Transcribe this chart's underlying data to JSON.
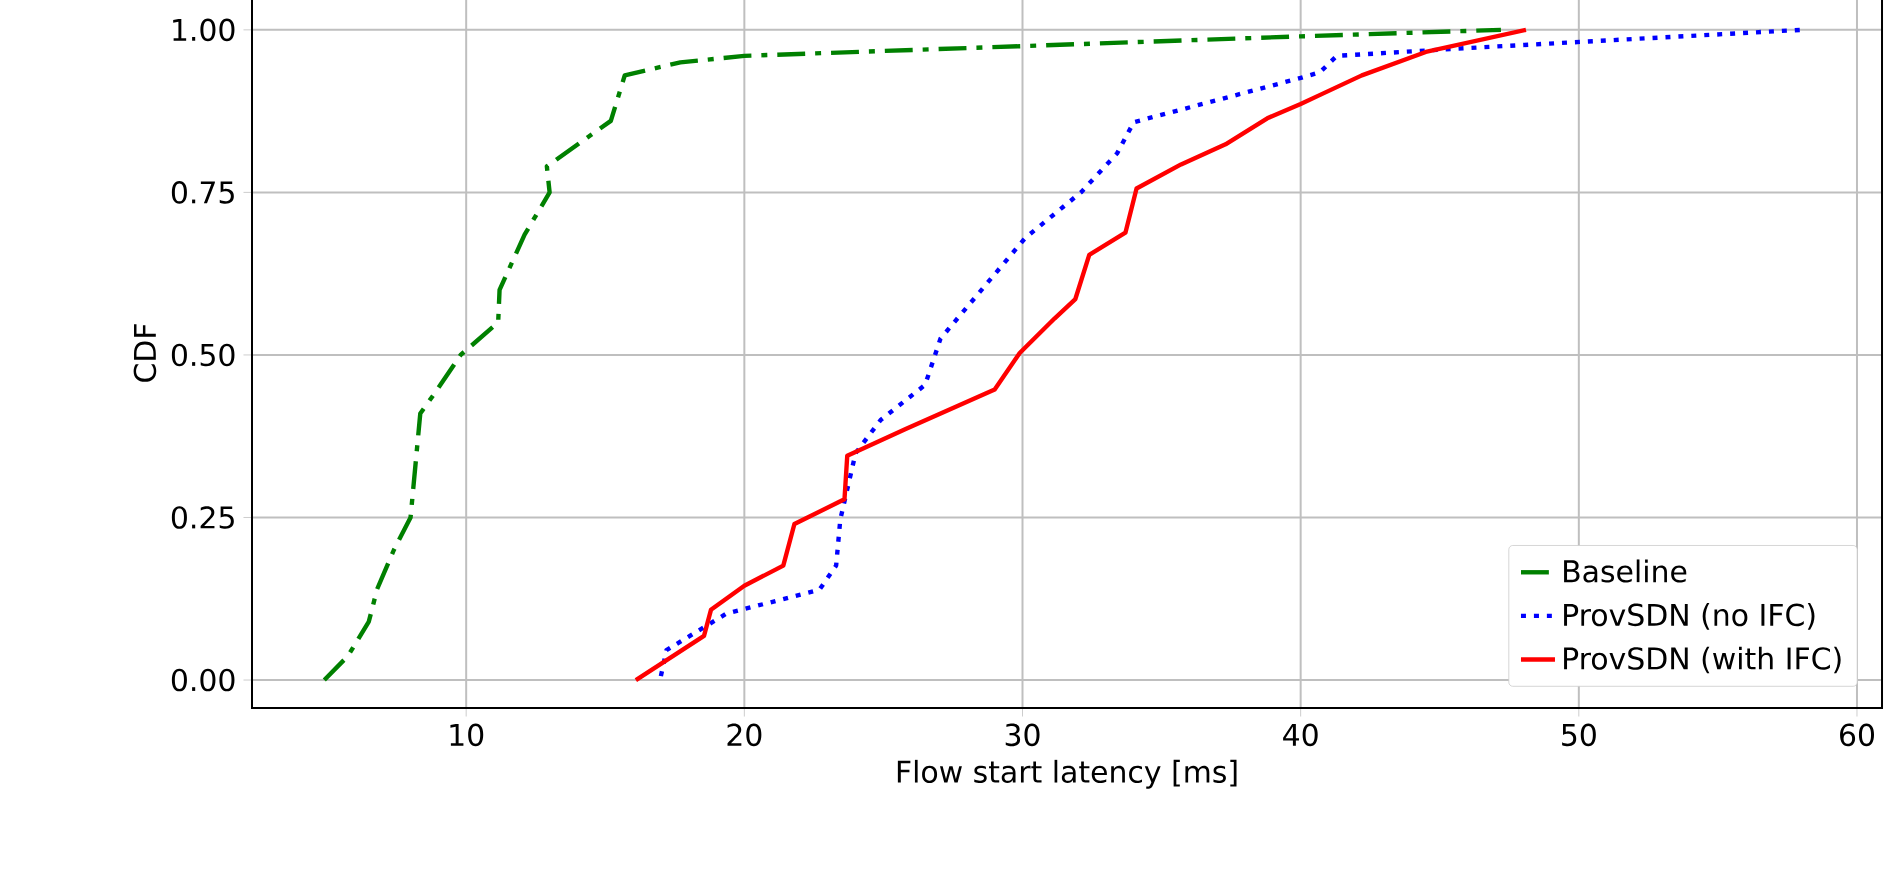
{
  "chart_data": {
    "type": "line",
    "xlabel": "Flow start latency [ms]",
    "ylabel": "CDF",
    "xlim": [
      2.3,
      60.9
    ],
    "ylim": [
      -0.043,
      1.049
    ],
    "xticks": [
      10,
      20,
      30,
      40,
      50,
      60
    ],
    "yticks": [
      {
        "value": 0,
        "label": "0.00"
      },
      {
        "value": 0.25,
        "label": "0.25"
      },
      {
        "value": 0.5,
        "label": "0.50"
      },
      {
        "value": 0.75,
        "label": "0.75"
      },
      {
        "value": 1,
        "label": "1.00"
      }
    ],
    "grid": true,
    "legend": "bottom right",
    "series": [
      {
        "name": "Baseline",
        "color": "#008000",
        "line_style": "dashdot",
        "x": [
          4.9,
          5.75,
          6.5,
          6.8,
          7.4,
          8.0,
          8.35,
          8.85,
          9.8,
          11.15,
          11.2,
          12.1,
          13.0,
          12.9,
          15.2,
          15.7,
          17.7,
          20,
          40,
          47.2
        ],
        "values": [
          0,
          0.037,
          0.09,
          0.14,
          0.2,
          0.25,
          0.41,
          0.44,
          0.5,
          0.55,
          0.6,
          0.685,
          0.75,
          0.79,
          0.86,
          0.93,
          0.95,
          0.96,
          0.99,
          1.0
        ]
      },
      {
        "name": "ProvSDN (no IFC)",
        "color": "#0000ff",
        "line_style": "dotted",
        "x": [
          17,
          17.2,
          19.35,
          22.7,
          23.3,
          23.45,
          24.0,
          24.9,
          26.5,
          27.05,
          30.1,
          32.1,
          33.4,
          34.0,
          40,
          40.7,
          41.3,
          46,
          58
        ],
        "values": [
          0.006,
          0.046,
          0.102,
          0.139,
          0.176,
          0.247,
          0.349,
          0.4,
          0.454,
          0.525,
          0.68,
          0.75,
          0.81,
          0.858,
          0.926,
          0.935,
          0.96,
          0.972,
          1.0
        ]
      },
      {
        "name": "ProvSDN (with IFC)",
        "color": "#ff0000",
        "line_style": "solid",
        "x": [
          16.1,
          18.55,
          18.8,
          20,
          21.4,
          21.8,
          23.6,
          23.7,
          25.8,
          29.0,
          29.9,
          31.15,
          31.9,
          32.4,
          33.7,
          34.1,
          35.7,
          37.3,
          38.8,
          40,
          40.7,
          42.2,
          44.5,
          48.1
        ],
        "values": [
          0,
          0.068,
          0.108,
          0.145,
          0.176,
          0.24,
          0.278,
          0.345,
          0.386,
          0.447,
          0.503,
          0.556,
          0.586,
          0.654,
          0.688,
          0.756,
          0.793,
          0.824,
          0.864,
          0.886,
          0.9,
          0.93,
          0.966,
          1.0
        ]
      }
    ]
  }
}
